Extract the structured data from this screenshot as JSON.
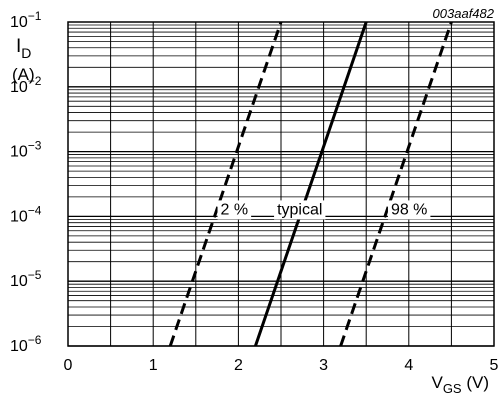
{
  "chart_data": {
    "type": "line",
    "figure_code": "003aaf482",
    "y_label": {
      "main": "I",
      "sub": "D",
      "unit": "(A)"
    },
    "x_label": {
      "main": "V",
      "sub": "GS",
      "unit": " (V)"
    },
    "x_ticks": [
      "0",
      "1",
      "2",
      "3",
      "4",
      "5"
    ],
    "y_ticks": [
      {
        "value": 0.1,
        "base": "10",
        "exp": "−1"
      },
      {
        "value": 0.01,
        "base": "10",
        "exp": "−2"
      },
      {
        "value": 0.001,
        "base": "10",
        "exp": "−3"
      },
      {
        "value": 0.0001,
        "base": "10",
        "exp": "−4"
      },
      {
        "value": 1e-05,
        "base": "10",
        "exp": "−5"
      },
      {
        "value": 1e-06,
        "base": "10",
        "exp": "−6"
      }
    ],
    "xlim": [
      0,
      5
    ],
    "ylim": [
      1e-06,
      0.1
    ],
    "y_scale": "log",
    "grid": true,
    "series": [
      {
        "name": "2 %",
        "style": "dashed",
        "points": [
          [
            1.2,
            1e-06
          ],
          [
            2.5,
            0.1
          ]
        ]
      },
      {
        "name": "typical",
        "style": "solid",
        "points": [
          [
            2.2,
            1e-06
          ],
          [
            3.5,
            0.1
          ]
        ]
      },
      {
        "name": "98 %",
        "style": "dashed",
        "points": [
          [
            3.2,
            1e-06
          ],
          [
            4.5,
            0.1
          ]
        ]
      }
    ]
  }
}
